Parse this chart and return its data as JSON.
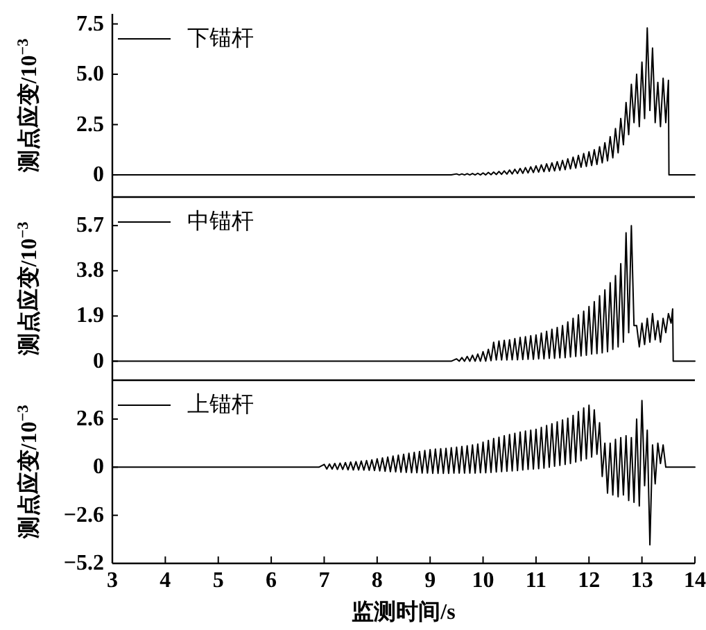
{
  "chart_data": [
    {
      "type": "line",
      "ylabel": "测点应变/10$^{−3}$",
      "xlim": [
        3,
        14
      ],
      "ylim": [
        -1.1,
        8.0
      ],
      "yticks": [
        0,
        2.5,
        {
          "value": 5,
          "label": "5.0"
        },
        7.5
      ],
      "tick_labels": "y",
      "legend": "top left",
      "series": [
        {
          "name": "下锚杆",
          "color": "#000000",
          "x": [
            3,
            9.4,
            9.5,
            9.55,
            9.6,
            9.65,
            9.7,
            9.75,
            9.8,
            9.85,
            9.9,
            9.95,
            10,
            10.05,
            10.1,
            10.15,
            10.2,
            10.25,
            10.3,
            10.35,
            10.4,
            10.45,
            10.5,
            10.55,
            10.6,
            10.65,
            10.7,
            10.75,
            10.8,
            10.85,
            10.9,
            10.95,
            11,
            11.05,
            11.1,
            11.15,
            11.2,
            11.25,
            11.3,
            11.35,
            11.4,
            11.45,
            11.5,
            11.55,
            11.6,
            11.65,
            11.7,
            11.75,
            11.8,
            11.85,
            11.9,
            11.95,
            12,
            12.05,
            12.1,
            12.15,
            12.2,
            12.25,
            12.3,
            12.35,
            12.4,
            12.45,
            12.5,
            12.55,
            12.6,
            12.65,
            12.7,
            12.75,
            12.8,
            12.85,
            12.9,
            12.95,
            13,
            13.05,
            13.1,
            13.15,
            13.2,
            13.25,
            13.3,
            13.35,
            13.4,
            13.45,
            13.5,
            13.51,
            14
          ],
          "values": [
            0,
            0,
            0.05,
            0,
            0.05,
            0,
            0.06,
            0,
            0.07,
            0,
            0.08,
            0,
            0.1,
            0,
            0.12,
            0.01,
            0.14,
            0.02,
            0.17,
            0.03,
            0.2,
            0.04,
            0.24,
            0.05,
            0.28,
            0.07,
            0.32,
            0.08,
            0.36,
            0.1,
            0.4,
            0.12,
            0.45,
            0.14,
            0.5,
            0.16,
            0.55,
            0.18,
            0.6,
            0.2,
            0.66,
            0.23,
            0.72,
            0.26,
            0.8,
            0.3,
            0.88,
            0.34,
            0.97,
            0.38,
            1.06,
            0.42,
            1.15,
            0.47,
            1.25,
            0.52,
            1.4,
            0.6,
            1.6,
            0.7,
            1.9,
            0.85,
            2.3,
            1.1,
            2.8,
            1.5,
            3.6,
            2,
            4.5,
            2.6,
            5,
            2.4,
            5.6,
            2.8,
            7.3,
            3.2,
            6.3,
            2.6,
            4.6,
            2.4,
            4.8,
            2.6,
            4.7,
            0,
            0
          ]
        }
      ]
    },
    {
      "type": "line",
      "ylabel": "测点应变/10$^{−3}$",
      "xlim": [
        3,
        14
      ],
      "ylim": [
        -0.8,
        6.9
      ],
      "yticks": [
        0,
        1.9,
        3.8,
        5.7
      ],
      "tick_labels": "y",
      "legend": "top left",
      "series": [
        {
          "name": "中锚杆",
          "color": "#000000",
          "x": [
            3,
            9.4,
            9.5,
            9.55,
            9.6,
            9.65,
            9.7,
            9.75,
            9.8,
            9.85,
            9.9,
            9.95,
            10,
            10.05,
            10.1,
            10.15,
            10.2,
            10.25,
            10.3,
            10.35,
            10.4,
            10.45,
            10.5,
            10.55,
            10.6,
            10.65,
            10.7,
            10.75,
            10.8,
            10.85,
            10.9,
            10.95,
            11,
            11.05,
            11.1,
            11.15,
            11.2,
            11.25,
            11.3,
            11.35,
            11.4,
            11.45,
            11.5,
            11.55,
            11.6,
            11.65,
            11.7,
            11.75,
            11.8,
            11.85,
            11.9,
            11.95,
            12,
            12.05,
            12.1,
            12.15,
            12.2,
            12.25,
            12.3,
            12.35,
            12.4,
            12.45,
            12.5,
            12.55,
            12.6,
            12.65,
            12.7,
            12.75,
            12.8,
            12.85,
            12.9,
            12.95,
            13,
            13.05,
            13.1,
            13.15,
            13.2,
            13.25,
            13.3,
            13.35,
            13.4,
            13.45,
            13.5,
            13.55,
            13.58,
            13.59,
            14
          ],
          "values": [
            0,
            0,
            0.1,
            0,
            0.15,
            0,
            0.2,
            0,
            0.25,
            0,
            0.3,
            0,
            0.4,
            0,
            0.5,
            0.02,
            0.8,
            0.05,
            0.85,
            0.05,
            0.88,
            0.05,
            0.9,
            0.06,
            0.95,
            0.06,
            1.0,
            0.07,
            1.03,
            0.08,
            1.07,
            0.08,
            1.1,
            0.1,
            1.18,
            0.1,
            1.26,
            0.12,
            1.34,
            0.12,
            1.42,
            0.14,
            1.5,
            0.15,
            1.65,
            0.18,
            1.8,
            0.2,
            1.95,
            0.22,
            2.1,
            0.25,
            2.3,
            0.3,
            2.5,
            0.32,
            2.75,
            0.35,
            3.0,
            0.4,
            3.3,
            0.5,
            3.6,
            0.6,
            4.1,
            0.8,
            5.4,
            1.2,
            5.7,
            1.5,
            1.5,
            0.6,
            1.6,
            0.7,
            1.8,
            0.8,
            2.0,
            0.9,
            1.7,
            0.8,
            1.8,
            1.2,
            2.0,
            1.6,
            2.2,
            0,
            0
          ]
        }
      ]
    },
    {
      "type": "line",
      "ylabel": "测点应变/10$^{−3}$",
      "xlabel": "监测时间/s",
      "xlim": [
        3,
        14
      ],
      "xticks": [
        3,
        4,
        5,
        6,
        7,
        8,
        9,
        10,
        11,
        12,
        13,
        14
      ],
      "ylim": [
        -5.2,
        4.7
      ],
      "yticks": [
        -5.2,
        -2.6,
        0,
        2.6
      ],
      "legend": "top left",
      "series": [
        {
          "name": "上锚杆",
          "color": "#000000",
          "x": [
            3,
            6.9,
            7,
            7.05,
            7.1,
            7.15,
            7.2,
            7.25,
            7.3,
            7.35,
            7.4,
            7.45,
            7.5,
            7.55,
            7.6,
            7.65,
            7.7,
            7.75,
            7.8,
            7.85,
            7.9,
            7.95,
            8,
            8.05,
            8.1,
            8.15,
            8.2,
            8.25,
            8.3,
            8.35,
            8.4,
            8.45,
            8.5,
            8.55,
            8.6,
            8.65,
            8.7,
            8.75,
            8.8,
            8.85,
            8.9,
            8.95,
            9,
            9.05,
            9.1,
            9.15,
            9.2,
            9.25,
            9.3,
            9.35,
            9.4,
            9.45,
            9.5,
            9.55,
            9.6,
            9.65,
            9.7,
            9.75,
            9.8,
            9.85,
            9.9,
            9.95,
            10,
            10.05,
            10.1,
            10.15,
            10.2,
            10.25,
            10.3,
            10.35,
            10.4,
            10.45,
            10.5,
            10.55,
            10.6,
            10.65,
            10.7,
            10.75,
            10.8,
            10.85,
            10.9,
            10.95,
            11,
            11.05,
            11.1,
            11.15,
            11.2,
            11.25,
            11.3,
            11.35,
            11.4,
            11.45,
            11.5,
            11.55,
            11.6,
            11.65,
            11.7,
            11.75,
            11.8,
            11.85,
            11.9,
            11.95,
            12,
            12.05,
            12.1,
            12.15,
            12.2,
            12.25,
            12.3,
            12.35,
            12.4,
            12.45,
            12.5,
            12.55,
            12.6,
            12.65,
            12.7,
            12.75,
            12.8,
            12.85,
            12.9,
            12.95,
            13,
            13.05,
            13.1,
            13.15,
            13.2,
            13.25,
            13.3,
            13.35,
            13.4,
            13.45,
            14
          ],
          "values": [
            0,
            0,
            0.15,
            -0.1,
            0.17,
            -0.1,
            0.2,
            -0.12,
            0.22,
            -0.12,
            0.25,
            -0.14,
            0.28,
            -0.15,
            0.3,
            -0.15,
            0.33,
            -0.16,
            0.36,
            -0.17,
            0.4,
            -0.18,
            0.45,
            -0.2,
            0.5,
            -0.22,
            0.55,
            -0.24,
            0.6,
            -0.25,
            0.65,
            -0.27,
            0.7,
            -0.28,
            0.75,
            -0.3,
            0.8,
            -0.3,
            0.85,
            -0.32,
            0.9,
            -0.32,
            0.95,
            -0.33,
            0.98,
            -0.33,
            1.0,
            -0.33,
            1.02,
            -0.33,
            1.05,
            -0.32,
            1.08,
            -0.32,
            1.12,
            -0.32,
            1.16,
            -0.32,
            1.2,
            -0.32,
            1.25,
            -0.3,
            1.35,
            -0.3,
            1.45,
            -0.28,
            1.55,
            -0.26,
            1.62,
            -0.24,
            1.7,
            -0.22,
            1.77,
            -0.2,
            1.83,
            -0.18,
            1.9,
            -0.15,
            1.95,
            -0.12,
            2.0,
            -0.1,
            2.05,
            -0.08,
            2.15,
            -0.05,
            2.25,
            0,
            2.35,
            0.05,
            2.45,
            0.1,
            2.55,
            0.15,
            2.65,
            0.2,
            2.8,
            0.28,
            3.0,
            0.35,
            3.2,
            0.45,
            3.35,
            0.55,
            3.1,
            0.7,
            2.4,
            -0.5,
            1.3,
            -1.4,
            1.3,
            -1.5,
            1.5,
            -1.6,
            1.6,
            -1.5,
            1.7,
            -1.8,
            1.6,
            -1.9,
            2.6,
            -2.1,
            3.6,
            -1.0,
            2.0,
            -4.2,
            1.2,
            -0.9,
            1.3,
            0.2,
            1.2,
            0,
            0
          ]
        }
      ]
    }
  ]
}
